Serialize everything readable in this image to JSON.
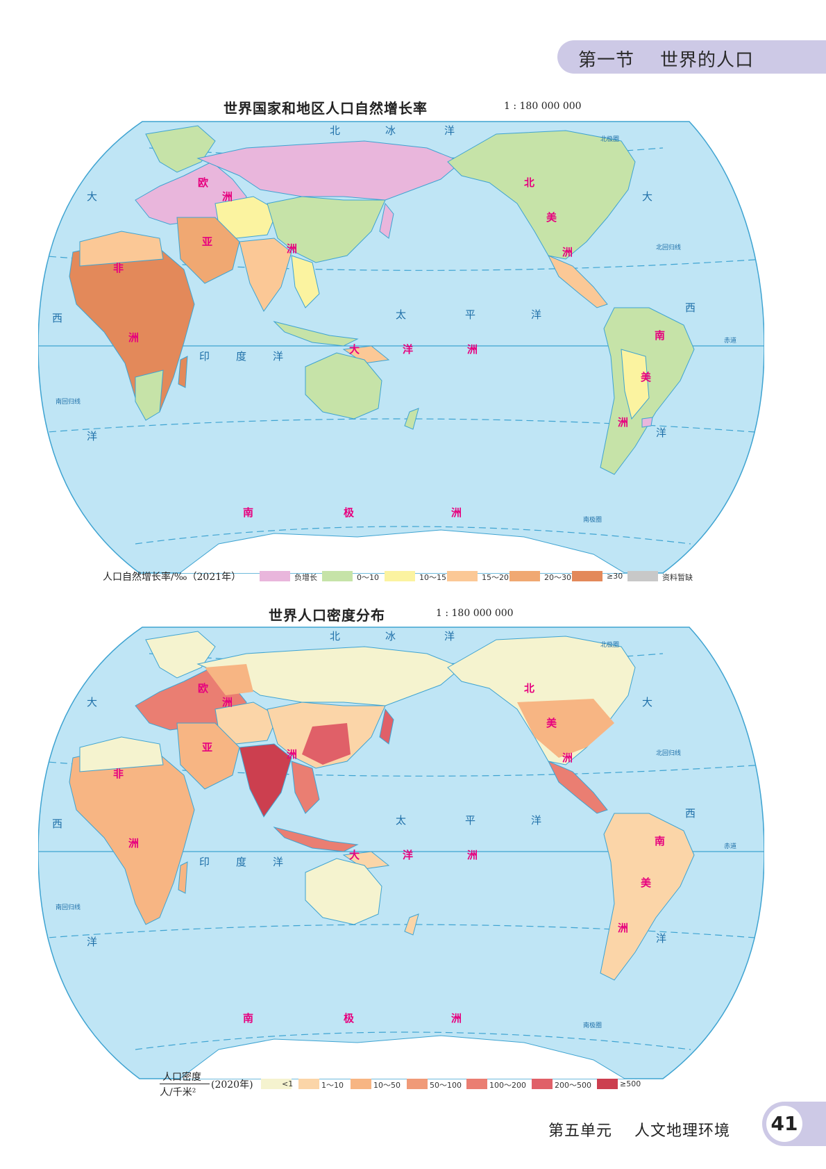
{
  "header": {
    "section": "第一节    世界的人口"
  },
  "maps": [
    {
      "title": "世界国家和地区人口自然增长率",
      "scale": "1 : 180 000 000",
      "legend": {
        "title": "人口自然增长率/‰（2021年）",
        "items": [
          {
            "label": "负增长",
            "color": "#e9b6dc"
          },
          {
            "label": "0～10",
            "color": "#c6e3a8"
          },
          {
            "label": "10～15",
            "color": "#fbf3a0"
          },
          {
            "label": "15～20",
            "color": "#fbc896"
          },
          {
            "label": "20～30",
            "color": "#f0a872"
          },
          {
            "label": "≥30",
            "color": "#e3895a"
          },
          {
            "label": "资料暂缺",
            "color": "#c8c8c8"
          }
        ]
      }
    },
    {
      "title": "世界人口密度分布",
      "scale": "1 : 180 000 000",
      "legend": {
        "title_num": "人口密度",
        "title_den": "人/千米²",
        "title_year": "(2020年)",
        "items": [
          {
            "label": "<1",
            "color": "#f5f3cf"
          },
          {
            "label": "1～10",
            "color": "#fbd5a8"
          },
          {
            "label": "10～50",
            "color": "#f7b583"
          },
          {
            "label": "50～100",
            "color": "#f09a78"
          },
          {
            "label": "100～200",
            "color": "#ea7e72"
          },
          {
            "label": "200～500",
            "color": "#e06068"
          },
          {
            "label": "≥500",
            "color": "#cc3f4f"
          }
        ]
      }
    }
  ],
  "map_labels": {
    "north_ocean": "北冰洋",
    "north_ocean_chars": [
      "北",
      "冰",
      "洋"
    ],
    "atlantic_left": [
      "大",
      "西",
      "洋"
    ],
    "atlantic_right": [
      "大",
      "西",
      "洋"
    ],
    "pacific": [
      "太",
      "平",
      "洋"
    ],
    "indian": [
      "印",
      "度",
      "洋"
    ],
    "europe": [
      "欧",
      "洲"
    ],
    "asia": [
      "亚",
      "洲"
    ],
    "africa": [
      "非",
      "洲"
    ],
    "north_america": [
      "北",
      "美",
      "洲"
    ],
    "south_america": [
      "南",
      "美",
      "洲"
    ],
    "oceania": [
      "大",
      "洋",
      "洲"
    ],
    "antarctica": [
      "南",
      "极",
      "洲"
    ],
    "arctic_circle": "北极圈",
    "tropic_cancer": "北回归线",
    "equator": "赤道",
    "tropic_capricorn": "南回归线",
    "antarctic_circle": "南极圈"
  },
  "colors": {
    "ocean": "#bfe5f5",
    "coast": "#3ea3d1",
    "continent_label": "#e6007e",
    "ocean_label": "#1e6fa8"
  },
  "footer": {
    "unit": "第五单元    人文地理环境",
    "page": "41"
  }
}
